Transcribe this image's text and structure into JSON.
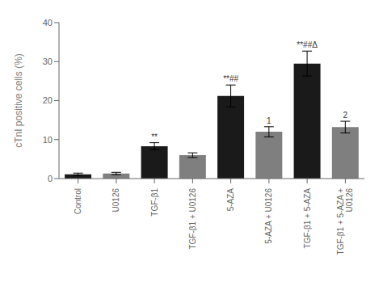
{
  "chart_data": {
    "type": "bar",
    "categories": [
      "Control",
      "U0126",
      "TGF-β1",
      "TGF-β1 + U0126",
      "5-AZA",
      "5-AZA + U0126",
      "TGF-β1 + 5-AZA",
      "TGF-β1 + 5-AZA +\nU0126"
    ],
    "values": [
      1.1,
      1.3,
      8.3,
      6.0,
      21.2,
      12.0,
      29.5,
      13.2
    ],
    "errors": [
      0.3,
      0.3,
      0.9,
      0.6,
      2.8,
      1.3,
      3.2,
      1.5
    ],
    "colors": [
      "#1a1a1a",
      "#7f7f7f",
      "#1a1a1a",
      "#7f7f7f",
      "#1a1a1a",
      "#7f7f7f",
      "#1a1a1a",
      "#7f7f7f"
    ],
    "annotations": [
      {
        "category": "TGF-β1",
        "text": "**"
      },
      {
        "category": "5-AZA",
        "text": "**##"
      },
      {
        "category": "TGF-β1 + 5-AZA",
        "text": "**##Δ"
      },
      {
        "category": "5-AZA + U0126",
        "text": "1"
      },
      {
        "category": "TGF-β1 + 5-AZA +\nU0126",
        "text": "2"
      }
    ],
    "ylabel": "cTnI positive cells (%)",
    "ylim": [
      0,
      40
    ],
    "yticks": [
      0,
      10,
      20,
      30,
      40
    ],
    "grid": false
  }
}
